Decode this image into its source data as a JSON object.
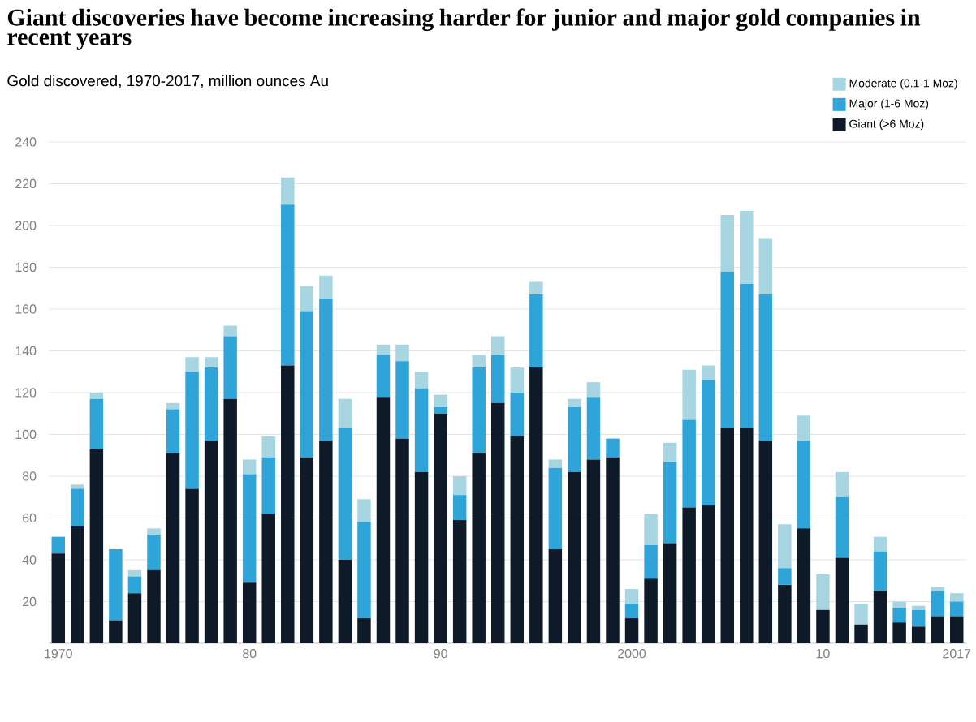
{
  "chart_data": {
    "type": "bar",
    "stacked": true,
    "title": "Giant discoveries have become increasing harder for junior and major gold companies in recent years",
    "subtitle": "Gold discovered, 1970-2017, million ounces Au",
    "categories": [
      "1970",
      null,
      null,
      null,
      null,
      null,
      null,
      null,
      null,
      null,
      "80",
      null,
      null,
      null,
      null,
      null,
      null,
      null,
      null,
      null,
      "90",
      null,
      null,
      null,
      null,
      null,
      null,
      null,
      null,
      null,
      "2000",
      null,
      null,
      null,
      null,
      null,
      null,
      null,
      null,
      null,
      "10",
      null,
      null,
      null,
      null,
      null,
      null,
      "2017"
    ],
    "series": [
      {
        "name": "Giant (>6 Moz)",
        "color": "#0e1a28",
        "values": [
          43,
          56,
          93,
          11,
          24,
          35,
          91,
          74,
          97,
          117,
          29,
          62,
          133,
          89,
          97,
          40,
          12,
          118,
          98,
          82,
          110,
          59,
          91,
          115,
          99,
          132,
          45,
          82,
          88,
          89,
          12,
          31,
          48,
          65,
          66,
          103,
          103,
          97,
          28,
          55,
          16,
          41,
          9,
          25,
          10,
          8,
          13,
          13
        ]
      },
      {
        "name": "Major (1-6 Moz)",
        "color": "#2fa4d8",
        "values": [
          8,
          18,
          24,
          34,
          8,
          17,
          21,
          56,
          35,
          30,
          52,
          27,
          77,
          70,
          68,
          63,
          46,
          20,
          37,
          40,
          3,
          12,
          41,
          23,
          21,
          35,
          39,
          31,
          30,
          9,
          7,
          16,
          39,
          42,
          60,
          75,
          69,
          70,
          8,
          42,
          0,
          29,
          0,
          19,
          7,
          8,
          12,
          7
        ]
      },
      {
        "name": "Moderate (0.1-1 Moz)",
        "color": "#a8d5e2",
        "values": [
          0,
          2,
          3,
          0,
          3,
          3,
          3,
          7,
          5,
          5,
          7,
          10,
          13,
          12,
          11,
          14,
          11,
          5,
          8,
          8,
          6,
          9,
          6,
          9,
          12,
          6,
          4,
          4,
          7,
          0,
          7,
          15,
          9,
          24,
          7,
          27,
          35,
          27,
          21,
          12,
          17,
          12,
          10,
          7,
          3,
          2,
          2,
          4
        ]
      }
    ],
    "ylim": [
      0,
      240
    ],
    "yticks": [
      20,
      40,
      60,
      80,
      100,
      120,
      140,
      160,
      180,
      200,
      220,
      240
    ],
    "grid": "y",
    "legend": "top right"
  }
}
